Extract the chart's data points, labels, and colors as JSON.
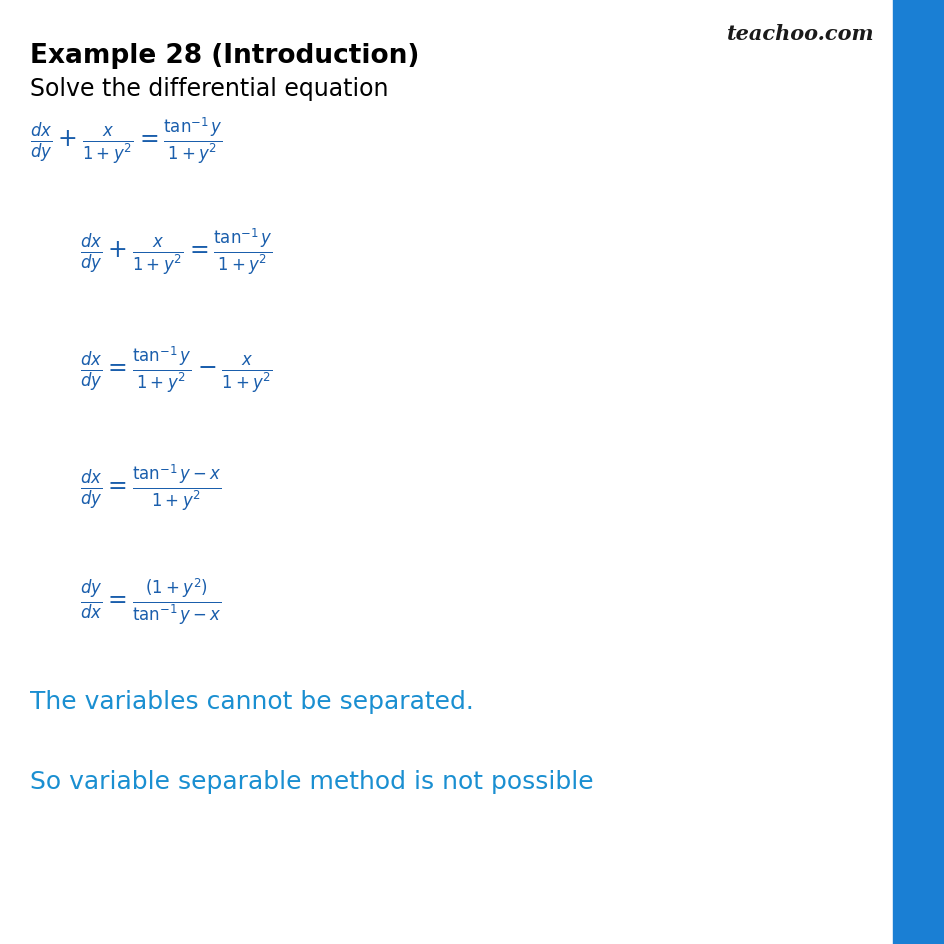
{
  "title": "Example 28 (Introduction)",
  "subtitle": "Solve the differential equation",
  "title_color": "#000000",
  "subtitle_color": "#000000",
  "math_color": "#1a5eac",
  "text_color": "#1a8fd1",
  "bg_color": "#ffffff",
  "watermark": "teachoo.com",
  "watermark_color": "#1a1a1a",
  "accent_bar_color": "#1a7fd4",
  "conclusion1": "The variables cannot be separated.",
  "conclusion2": "So variable separable method is not possible"
}
